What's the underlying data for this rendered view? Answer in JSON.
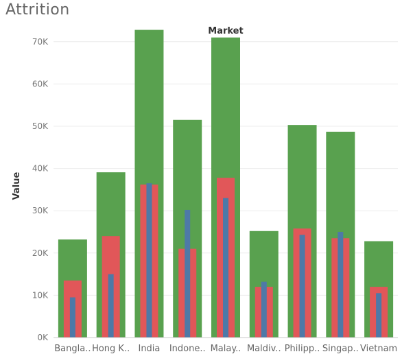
{
  "page": {
    "title": "Attrition"
  },
  "chart_data": {
    "type": "bar",
    "title": "Attrition",
    "xlabel": "Market",
    "ylabel": "Value",
    "ylim": [
      0,
      75000
    ],
    "yticks": [
      0,
      10000,
      20000,
      30000,
      40000,
      50000,
      60000,
      70000
    ],
    "ytick_labels": [
      "0K",
      "10K",
      "20K",
      "30K",
      "40K",
      "50K",
      "60K",
      "70K"
    ],
    "categories": [
      "Bangla..",
      "Hong K..",
      "India",
      "Indone..",
      "Malay..",
      "Maldiv..",
      "Philipp..",
      "Singap..",
      "Vietnam"
    ],
    "series": [
      {
        "color": "#59a14f",
        "values": [
          23200,
          39100,
          72800,
          51500,
          71000,
          25200,
          50300,
          48700,
          22800
        ]
      },
      {
        "color": "#e15759",
        "values": [
          13500,
          24000,
          36200,
          21000,
          37800,
          12000,
          25800,
          23500,
          12000
        ]
      },
      {
        "color": "#4e79a7",
        "values": [
          9500,
          15000,
          36500,
          30200,
          33000,
          13200,
          24300,
          25000,
          10500
        ]
      }
    ],
    "grid": true,
    "legend": "none"
  }
}
